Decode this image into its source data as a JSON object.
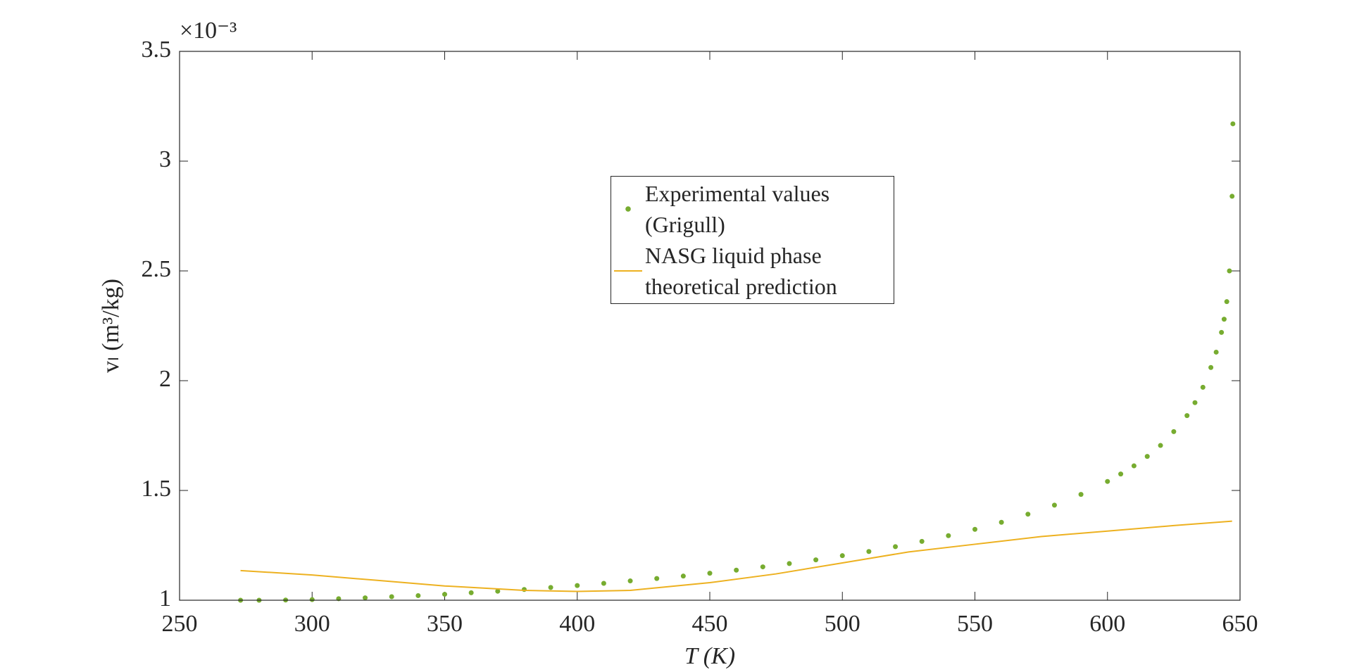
{
  "chart_data": {
    "type": "scatter",
    "x_label": "T (K)",
    "y_label": "vₗ (m³/kg)",
    "y_multiplier": "×10⁻³",
    "xlim": [
      250,
      650
    ],
    "xticks": [
      250,
      300,
      350,
      400,
      450,
      500,
      550,
      600,
      650
    ],
    "ylim": [
      1,
      3.5
    ],
    "yticks": [
      1,
      1.5,
      2,
      2.5,
      3,
      3.5
    ],
    "series": [
      {
        "name": "Experimental values (Grigull)",
        "type": "scatter",
        "color": "#77ac30",
        "x": [
          273,
          280,
          290,
          300,
          310,
          320,
          330,
          340,
          350,
          360,
          370,
          380,
          390,
          400,
          410,
          420,
          430,
          440,
          450,
          460,
          470,
          480,
          490,
          500,
          510,
          520,
          530,
          540,
          550,
          560,
          570,
          580,
          590,
          600,
          605,
          610,
          615,
          620,
          625,
          630,
          633,
          636,
          639,
          641,
          643,
          644,
          645,
          646,
          647,
          647.3
        ],
        "values": [
          1.0,
          1.0,
          1.001,
          1.003,
          1.007,
          1.011,
          1.016,
          1.021,
          1.027,
          1.034,
          1.041,
          1.049,
          1.058,
          1.067,
          1.077,
          1.088,
          1.099,
          1.11,
          1.123,
          1.137,
          1.152,
          1.167,
          1.184,
          1.203,
          1.222,
          1.244,
          1.268,
          1.294,
          1.323,
          1.355,
          1.392,
          1.433,
          1.482,
          1.541,
          1.575,
          1.612,
          1.655,
          1.705,
          1.768,
          1.841,
          1.9,
          1.97,
          2.06,
          2.13,
          2.22,
          2.28,
          2.36,
          2.5,
          2.84,
          3.17
        ]
      },
      {
        "name": "NASG liquid phase theoretical prediction",
        "type": "line",
        "color": "#edb120",
        "x": [
          273,
          300,
          325,
          350,
          380,
          400,
          420,
          450,
          475,
          500,
          525,
          550,
          575,
          600,
          625,
          647
        ],
        "values": [
          1.135,
          1.115,
          1.09,
          1.065,
          1.045,
          1.04,
          1.045,
          1.08,
          1.12,
          1.17,
          1.22,
          1.255,
          1.29,
          1.315,
          1.34,
          1.36
        ]
      }
    ]
  }
}
